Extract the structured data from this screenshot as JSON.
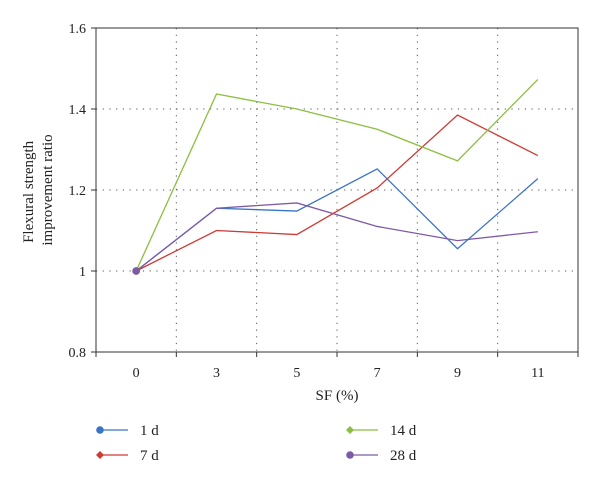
{
  "chart_data": {
    "type": "line",
    "xlabel": "SF (%)",
    "ylabel_lines": [
      "Flexural strength",
      "improvement ratio"
    ],
    "categories": [
      "0",
      "3",
      "5",
      "7",
      "9",
      "11"
    ],
    "ylim": [
      0.8,
      1.6
    ],
    "yticks": [
      "0.8",
      "1",
      "1.2",
      "1.4",
      "1.6"
    ],
    "grid": true,
    "legend_position": "bottom",
    "series": [
      {
        "name": "1 d",
        "color": "#3a74c6",
        "marker": "circle",
        "values": [
          1.0,
          1.155,
          1.148,
          1.252,
          1.055,
          1.228
        ]
      },
      {
        "name": "7 d",
        "color": "#cf3a34",
        "marker": "diamond",
        "values": [
          1.0,
          1.1,
          1.09,
          1.205,
          1.385,
          1.285
        ]
      },
      {
        "name": "14 d",
        "color": "#8cbf3f",
        "marker": "diamond",
        "values": [
          1.0,
          1.437,
          1.4,
          1.35,
          1.272,
          1.473
        ]
      },
      {
        "name": "28 d",
        "color": "#7e5aa6",
        "marker": "circle",
        "values": [
          1.0,
          1.155,
          1.168,
          1.11,
          1.075,
          1.097
        ]
      }
    ]
  }
}
